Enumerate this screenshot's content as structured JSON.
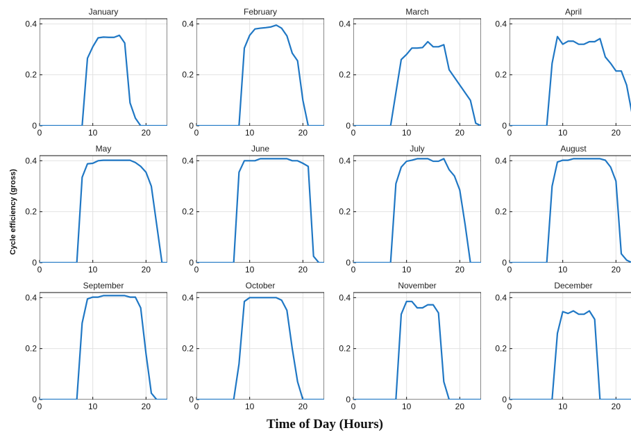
{
  "figure": {
    "ylabel": "Cycle efficiency (gross)",
    "xlabel": "Time of Day (Hours)",
    "line_color": "#1f77c4",
    "grid_color": "#e2e2e2"
  },
  "chart_data": [
    {
      "type": "line",
      "title": "January",
      "x": [
        0,
        1,
        2,
        3,
        4,
        5,
        6,
        7,
        8,
        9,
        10,
        11,
        12,
        13,
        14,
        15,
        16,
        17,
        18,
        19,
        20,
        21,
        22,
        23,
        24
      ],
      "y": [
        0,
        0,
        0,
        0,
        0,
        0,
        0,
        0,
        0,
        0.265,
        0.31,
        0.345,
        0.348,
        0.347,
        0.347,
        0.355,
        0.325,
        0.09,
        0.03,
        0,
        0,
        0,
        0,
        0,
        0
      ],
      "xlim": [
        0,
        24
      ],
      "ylim": [
        0,
        0.42
      ],
      "xticks": [
        0,
        10,
        20
      ],
      "yticks": [
        0,
        0.2,
        0.4
      ],
      "xtick_labels": [
        "0",
        "10",
        "20"
      ],
      "ytick_labels": [
        "0",
        "0.2",
        "0.4"
      ]
    },
    {
      "type": "line",
      "title": "February",
      "x": [
        0,
        1,
        2,
        3,
        4,
        5,
        6,
        7,
        8,
        9,
        10,
        11,
        12,
        13,
        14,
        15,
        16,
        17,
        18,
        19,
        20,
        21,
        22,
        23,
        24
      ],
      "y": [
        0,
        0,
        0,
        0,
        0,
        0,
        0,
        0,
        0,
        0.305,
        0.355,
        0.38,
        0.383,
        0.385,
        0.388,
        0.395,
        0.383,
        0.353,
        0.285,
        0.255,
        0.1,
        0,
        0,
        0,
        0
      ],
      "xlim": [
        0,
        24
      ],
      "ylim": [
        0,
        0.42
      ],
      "xticks": [
        0,
        10,
        20
      ],
      "yticks": [
        0,
        0.2,
        0.4
      ],
      "xtick_labels": [
        "0",
        "10",
        "20"
      ],
      "ytick_labels": [
        "0",
        "0.2",
        "0.4"
      ]
    },
    {
      "type": "line",
      "title": "March",
      "x": [
        0,
        1,
        2,
        3,
        4,
        5,
        6,
        7,
        8,
        9,
        10,
        11,
        12,
        13,
        14,
        15,
        16,
        17,
        18,
        19,
        20,
        21,
        22,
        23,
        24
      ],
      "y": [
        0,
        0,
        0,
        0,
        0,
        0,
        0,
        0,
        0.13,
        0.26,
        0.28,
        0.305,
        0.305,
        0.307,
        0.33,
        0.31,
        0.31,
        0.318,
        0.22,
        0.19,
        0.16,
        0.13,
        0.1,
        0.01,
        0
      ],
      "xlim": [
        0,
        24
      ],
      "ylim": [
        0,
        0.42
      ],
      "xticks": [
        0,
        10,
        20
      ],
      "yticks": [
        0,
        0.2,
        0.4
      ],
      "xtick_labels": [
        "0",
        "10",
        "20"
      ],
      "ytick_labels": [
        "0",
        "0.2",
        "0.4"
      ]
    },
    {
      "type": "line",
      "title": "April",
      "x": [
        0,
        1,
        2,
        3,
        4,
        5,
        6,
        7,
        8,
        9,
        10,
        11,
        12,
        13,
        14,
        15,
        16,
        17,
        18,
        19,
        20,
        21,
        22,
        23,
        24
      ],
      "y": [
        0,
        0,
        0,
        0,
        0,
        0,
        0,
        0,
        0.245,
        0.35,
        0.32,
        0.332,
        0.332,
        0.32,
        0.32,
        0.33,
        0.33,
        0.342,
        0.27,
        0.245,
        0.215,
        0.215,
        0.16,
        0.05,
        0
      ],
      "xlim": [
        0,
        24
      ],
      "ylim": [
        0,
        0.42
      ],
      "xticks": [
        0,
        10,
        20
      ],
      "yticks": [
        0,
        0.2,
        0.4
      ],
      "xtick_labels": [
        "0",
        "10",
        "20"
      ],
      "ytick_labels": [
        "0",
        "0.2",
        "0.4"
      ]
    },
    {
      "type": "line",
      "title": "May",
      "x": [
        0,
        1,
        2,
        3,
        4,
        5,
        6,
        7,
        8,
        9,
        10,
        11,
        12,
        13,
        14,
        15,
        16,
        17,
        18,
        19,
        20,
        21,
        22,
        23,
        24
      ],
      "y": [
        0,
        0,
        0,
        0,
        0,
        0,
        0,
        0,
        0.335,
        0.388,
        0.39,
        0.4,
        0.402,
        0.402,
        0.402,
        0.402,
        0.402,
        0.402,
        0.393,
        0.378,
        0.355,
        0.3,
        0.15,
        0,
        0
      ],
      "xlim": [
        0,
        24
      ],
      "ylim": [
        0,
        0.42
      ],
      "xticks": [
        0,
        10,
        20
      ],
      "yticks": [
        0,
        0.2,
        0.4
      ],
      "xtick_labels": [
        "0",
        "10",
        "20"
      ],
      "ytick_labels": [
        "0",
        "0.2",
        "0.4"
      ]
    },
    {
      "type": "line",
      "title": "June",
      "x": [
        0,
        1,
        2,
        3,
        4,
        5,
        6,
        7,
        8,
        9,
        10,
        11,
        12,
        13,
        14,
        15,
        16,
        17,
        18,
        19,
        20,
        21,
        22,
        23,
        24
      ],
      "y": [
        0,
        0,
        0,
        0,
        0,
        0,
        0,
        0,
        0.355,
        0.4,
        0.4,
        0.4,
        0.408,
        0.408,
        0.408,
        0.408,
        0.408,
        0.408,
        0.4,
        0.4,
        0.39,
        0.378,
        0.025,
        0,
        0
      ],
      "xlim": [
        0,
        24
      ],
      "ylim": [
        0,
        0.42
      ],
      "xticks": [
        0,
        10,
        20
      ],
      "yticks": [
        0,
        0.2,
        0.4
      ],
      "xtick_labels": [
        "0",
        "10",
        "20"
      ],
      "ytick_labels": [
        "0",
        "0.2",
        "0.4"
      ]
    },
    {
      "type": "line",
      "title": "July",
      "x": [
        0,
        1,
        2,
        3,
        4,
        5,
        6,
        7,
        8,
        9,
        10,
        11,
        12,
        13,
        14,
        15,
        16,
        17,
        18,
        19,
        20,
        21,
        22,
        23,
        24
      ],
      "y": [
        0,
        0,
        0,
        0,
        0,
        0,
        0,
        0,
        0.31,
        0.375,
        0.398,
        0.402,
        0.408,
        0.408,
        0.408,
        0.398,
        0.398,
        0.408,
        0.365,
        0.34,
        0.285,
        0.15,
        0,
        0,
        0
      ],
      "xlim": [
        0,
        24
      ],
      "ylim": [
        0,
        0.42
      ],
      "xticks": [
        0,
        10,
        20
      ],
      "yticks": [
        0,
        0.2,
        0.4
      ],
      "xtick_labels": [
        "0",
        "10",
        "20"
      ],
      "ytick_labels": [
        "0",
        "0.2",
        "0.4"
      ]
    },
    {
      "type": "line",
      "title": "August",
      "x": [
        0,
        1,
        2,
        3,
        4,
        5,
        6,
        7,
        8,
        9,
        10,
        11,
        12,
        13,
        14,
        15,
        16,
        17,
        18,
        19,
        20,
        21,
        22,
        23,
        24
      ],
      "y": [
        0,
        0,
        0,
        0,
        0,
        0,
        0,
        0,
        0.3,
        0.395,
        0.402,
        0.402,
        0.408,
        0.408,
        0.408,
        0.408,
        0.408,
        0.408,
        0.402,
        0.375,
        0.32,
        0.035,
        0.01,
        0,
        0
      ],
      "xlim": [
        0,
        24
      ],
      "ylim": [
        0,
        0.42
      ],
      "xticks": [
        0,
        10,
        20
      ],
      "yticks": [
        0,
        0.2,
        0.4
      ],
      "xtick_labels": [
        "0",
        "10",
        "20"
      ],
      "ytick_labels": [
        "0",
        "0.2",
        "0.4"
      ]
    },
    {
      "type": "line",
      "title": "September",
      "x": [
        0,
        1,
        2,
        3,
        4,
        5,
        6,
        7,
        8,
        9,
        10,
        11,
        12,
        13,
        14,
        15,
        16,
        17,
        18,
        19,
        20,
        21,
        22,
        23,
        24
      ],
      "y": [
        0,
        0,
        0,
        0,
        0,
        0,
        0,
        0,
        0.3,
        0.395,
        0.402,
        0.402,
        0.408,
        0.408,
        0.408,
        0.408,
        0.408,
        0.402,
        0.402,
        0.36,
        0.18,
        0.025,
        0,
        0,
        0
      ],
      "xlim": [
        0,
        24
      ],
      "ylim": [
        0,
        0.42
      ],
      "xticks": [
        0,
        10,
        20
      ],
      "yticks": [
        0,
        0.2,
        0.4
      ],
      "xtick_labels": [
        "0",
        "10",
        "20"
      ],
      "ytick_labels": [
        "0",
        "0.2",
        "0.4"
      ]
    },
    {
      "type": "line",
      "title": "October",
      "x": [
        0,
        1,
        2,
        3,
        4,
        5,
        6,
        7,
        8,
        9,
        10,
        11,
        12,
        13,
        14,
        15,
        16,
        17,
        18,
        19,
        20,
        21,
        22,
        23,
        24
      ],
      "y": [
        0,
        0,
        0,
        0,
        0,
        0,
        0,
        0,
        0.14,
        0.385,
        0.4,
        0.4,
        0.4,
        0.4,
        0.4,
        0.4,
        0.39,
        0.35,
        0.2,
        0.07,
        0,
        0,
        0,
        0,
        0
      ],
      "xlim": [
        0,
        24
      ],
      "ylim": [
        0,
        0.42
      ],
      "xticks": [
        0,
        10,
        20
      ],
      "yticks": [
        0,
        0.2,
        0.4
      ],
      "xtick_labels": [
        "0",
        "10",
        "20"
      ],
      "ytick_labels": [
        "0",
        "0.2",
        "0.4"
      ]
    },
    {
      "type": "line",
      "title": "November",
      "x": [
        0,
        1,
        2,
        3,
        4,
        5,
        6,
        7,
        8,
        9,
        10,
        11,
        12,
        13,
        14,
        15,
        16,
        17,
        18,
        19,
        20,
        21,
        22,
        23,
        24
      ],
      "y": [
        0,
        0,
        0,
        0,
        0,
        0,
        0,
        0,
        0,
        0.335,
        0.385,
        0.385,
        0.36,
        0.36,
        0.372,
        0.372,
        0.34,
        0.07,
        0,
        0,
        0,
        0,
        0,
        0,
        0
      ],
      "xlim": [
        0,
        24
      ],
      "ylim": [
        0,
        0.42
      ],
      "xticks": [
        0,
        10,
        20
      ],
      "yticks": [
        0,
        0.2,
        0.4
      ],
      "xtick_labels": [
        "0",
        "10",
        "20"
      ],
      "ytick_labels": [
        "0",
        "0.2",
        "0.4"
      ]
    },
    {
      "type": "line",
      "title": "December",
      "x": [
        0,
        1,
        2,
        3,
        4,
        5,
        6,
        7,
        8,
        9,
        10,
        11,
        12,
        13,
        14,
        15,
        16,
        17,
        18,
        19,
        20,
        21,
        22,
        23,
        24
      ],
      "y": [
        0,
        0,
        0,
        0,
        0,
        0,
        0,
        0,
        0,
        0.26,
        0.345,
        0.338,
        0.348,
        0.335,
        0.335,
        0.348,
        0.315,
        0,
        0,
        0,
        0,
        0,
        0,
        0,
        0
      ],
      "xlim": [
        0,
        24
      ],
      "ylim": [
        0,
        0.42
      ],
      "xticks": [
        0,
        10,
        20
      ],
      "yticks": [
        0,
        0.2,
        0.4
      ],
      "xtick_labels": [
        "0",
        "10",
        "20"
      ],
      "ytick_labels": [
        "0",
        "0.2",
        "0.4"
      ]
    }
  ]
}
